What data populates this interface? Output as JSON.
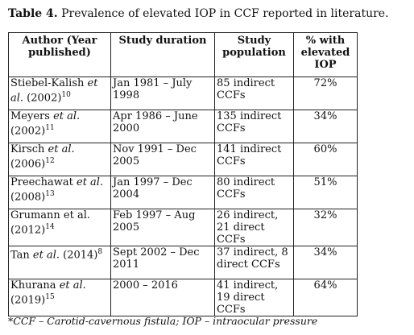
{
  "caption": {
    "label": "Table 4.",
    "text": " Prevalence of elevated IOP in CCF reported in literature."
  },
  "headers": [
    "Author (Year published)",
    "Study duration",
    "Study population",
    "% with elevated IOP"
  ],
  "rows": [
    {
      "author_pre": "Stiebel-Kalish ",
      "author_em": "et al.",
      "author_post": " (2002)",
      "ref": "10",
      "duration": "Jan 1981 – July 1998",
      "population": "85 indirect CCFs",
      "percent": "72%"
    },
    {
      "author_pre": "Meyers ",
      "author_em": "et al.",
      "author_post": " (2002)",
      "ref": "11",
      "duration": "Apr 1986 – June 2000",
      "population": "135 indirect CCFs",
      "percent": "34%"
    },
    {
      "author_pre": "Kirsch ",
      "author_em": "et al.",
      "author_post": " (2006)",
      "ref": "12",
      "duration": "Nov 1991 – Dec 2005",
      "population": "141 indirect CCFs",
      "percent": "60%"
    },
    {
      "author_pre": "Preechawat ",
      "author_em": "et al.",
      "author_post": " (2008)",
      "ref": "13",
      "duration": "Jan 1997 – Dec 2004",
      "population": "80 indirect CCFs",
      "percent": "51%"
    },
    {
      "author_pre": "Grumann et al. (2012)",
      "author_em": "",
      "author_post": "",
      "ref": "14",
      "duration": "Feb 1997 – Aug 2005",
      "population": "26 indirect, 21 direct CCFs",
      "percent": "32%"
    },
    {
      "author_pre": "Tan ",
      "author_em": "et al.",
      "author_post": " (2014)",
      "ref": "8",
      "duration": "Sept 2002 – Dec 2011",
      "population": "37 indirect, 8 direct CCFs",
      "percent": "34%"
    },
    {
      "author_pre": "Khurana ",
      "author_em": "et al.",
      "author_post": " (2019)",
      "ref": "15",
      "duration": "2000 – 2016",
      "population": "41 indirect, 19 direct CCFs",
      "percent": "64%"
    }
  ],
  "footnote": "*CCF – Carotid-cavernous fistula; IOP – intraocular pressure"
}
